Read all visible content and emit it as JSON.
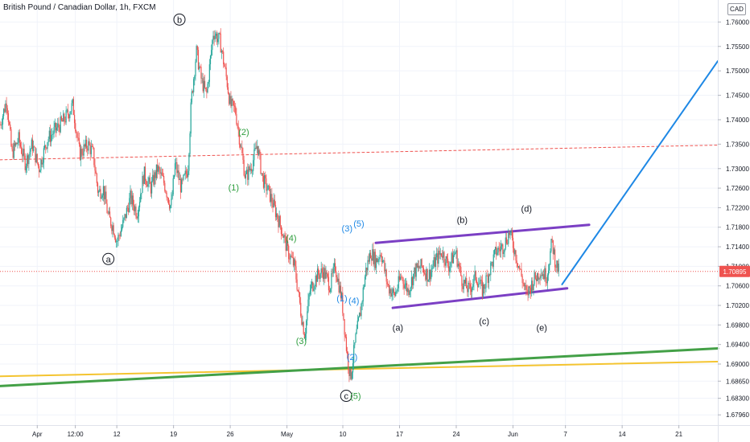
{
  "header": {
    "symbol_title": "British Pound / Canadian Dollar, 1h, FXCM",
    "currency_button": "CAD"
  },
  "colors": {
    "up": "#26a69a",
    "down": "#ef5350",
    "purple": "#7b3fc4",
    "blue": "#1e88e5",
    "green_line": "#43a047",
    "orange_line": "#f4c430",
    "green_label": "#2e9e3e",
    "blue_label": "#1e88e5",
    "black_label": "#131722",
    "price_tag": "#ef5350",
    "dashed": "#ef5350"
  },
  "chart_data": {
    "type": "line",
    "title": "British Pound / Canadian Dollar, 1h, FXCM",
    "ylim": [
      1.6775,
      1.7645
    ],
    "y_ticks": [
      "1.76000",
      "1.75500",
      "1.75000",
      "1.74500",
      "1.74000",
      "1.73500",
      "1.73000",
      "1.72600",
      "1.72200",
      "1.71800",
      "1.71400",
      "1.71000",
      "1.70600",
      "1.70200",
      "1.69800",
      "1.69400",
      "1.69000",
      "1.68650",
      "1.68300",
      "1.67960"
    ],
    "y_tick_values": [
      1.76,
      1.755,
      1.75,
      1.745,
      1.74,
      1.735,
      1.73,
      1.726,
      1.722,
      1.718,
      1.714,
      1.71,
      1.706,
      1.702,
      1.698,
      1.694,
      1.69,
      1.6865,
      1.683,
      1.6796
    ],
    "x_ticks": [
      {
        "label": "Apr",
        "t": 0
      },
      {
        "label": "12:00",
        "t": 4.5
      },
      {
        "label": "12",
        "t": 9.4
      },
      {
        "label": "19",
        "t": 16.1
      },
      {
        "label": "26",
        "t": 22.8
      },
      {
        "label": "May",
        "t": 29.5
      },
      {
        "label": "10",
        "t": 36.1
      },
      {
        "label": "17",
        "t": 42.8
      },
      {
        "label": "24",
        "t": 49.5
      },
      {
        "label": "Jun",
        "t": 56.2
      },
      {
        "label": "7",
        "t": 62.4
      },
      {
        "label": "14",
        "t": 69.1
      },
      {
        "label": "21",
        "t": 75.8
      }
    ],
    "xlim": [
      -4.4,
      80.4
    ],
    "current_price": "1.70895",
    "current_price_value": 1.70895,
    "price_path": [
      [
        -4.4,
        1.739
      ],
      [
        -3.6,
        1.744
      ],
      [
        -3.0,
        1.733
      ],
      [
        -2.2,
        1.736
      ],
      [
        -1.4,
        1.731
      ],
      [
        -0.6,
        1.735
      ],
      [
        0.2,
        1.73
      ],
      [
        1.2,
        1.736
      ],
      [
        2.2,
        1.738
      ],
      [
        3.2,
        1.74
      ],
      [
        4.2,
        1.743
      ],
      [
        5.0,
        1.733
      ],
      [
        6.0,
        1.735
      ],
      [
        6.6,
        1.733
      ],
      [
        7.2,
        1.725
      ],
      [
        7.8,
        1.726
      ],
      [
        8.4,
        1.72
      ],
      [
        9.0,
        1.718
      ],
      [
        9.4,
        1.715
      ],
      [
        10.2,
        1.719
      ],
      [
        11.0,
        1.724
      ],
      [
        11.8,
        1.721
      ],
      [
        12.6,
        1.729
      ],
      [
        13.4,
        1.726
      ],
      [
        14.2,
        1.73
      ],
      [
        15.0,
        1.727
      ],
      [
        15.8,
        1.722
      ],
      [
        16.3,
        1.731
      ],
      [
        17.0,
        1.726
      ],
      [
        17.8,
        1.73
      ],
      [
        18.2,
        1.744
      ],
      [
        18.8,
        1.754
      ],
      [
        19.4,
        1.748
      ],
      [
        20.0,
        1.745
      ],
      [
        20.8,
        1.758
      ],
      [
        21.6,
        1.756
      ],
      [
        22.4,
        1.748
      ],
      [
        22.8,
        1.743
      ],
      [
        23.4,
        1.742
      ],
      [
        24.0,
        1.735
      ],
      [
        24.6,
        1.728
      ],
      [
        25.4,
        1.731
      ],
      [
        26.0,
        1.735
      ],
      [
        26.6,
        1.728
      ],
      [
        27.4,
        1.725
      ],
      [
        28.0,
        1.722
      ],
      [
        28.8,
        1.718
      ],
      [
        29.6,
        1.713
      ],
      [
        30.4,
        1.71
      ],
      [
        31.2,
        1.7
      ],
      [
        31.6,
        1.696
      ],
      [
        32.2,
        1.705
      ],
      [
        33.0,
        1.708
      ],
      [
        33.8,
        1.709
      ],
      [
        34.6,
        1.706
      ],
      [
        35.2,
        1.71
      ],
      [
        36.0,
        1.703
      ],
      [
        36.6,
        1.692
      ],
      [
        37.0,
        1.687
      ],
      [
        37.6,
        1.695
      ],
      [
        38.2,
        1.701
      ],
      [
        38.8,
        1.709
      ],
      [
        39.4,
        1.713
      ],
      [
        40.0,
        1.711
      ],
      [
        40.6,
        1.713
      ],
      [
        41.4,
        1.706
      ],
      [
        42.2,
        1.704
      ],
      [
        43.0,
        1.708
      ],
      [
        43.8,
        1.705
      ],
      [
        44.6,
        1.709
      ],
      [
        45.4,
        1.71
      ],
      [
        46.2,
        1.708
      ],
      [
        47.0,
        1.711
      ],
      [
        47.8,
        1.713
      ],
      [
        48.6,
        1.71
      ],
      [
        49.4,
        1.713
      ],
      [
        50.2,
        1.707
      ],
      [
        51.0,
        1.705
      ],
      [
        51.8,
        1.708
      ],
      [
        52.6,
        1.705
      ],
      [
        53.4,
        1.709
      ],
      [
        54.2,
        1.713
      ],
      [
        55.0,
        1.714
      ],
      [
        55.8,
        1.717
      ],
      [
        56.6,
        1.712
      ],
      [
        57.2,
        1.708
      ],
      [
        57.8,
        1.704
      ],
      [
        58.6,
        1.707
      ],
      [
        59.4,
        1.709
      ],
      [
        60.2,
        1.708
      ],
      [
        60.8,
        1.715
      ],
      [
        61.2,
        1.711
      ],
      [
        61.6,
        1.709
      ]
    ],
    "horizontal_dashed": {
      "from": [
        -4.4,
        1.7318
      ],
      "to": [
        80.4,
        1.7348
      ]
    },
    "channel_upper": {
      "from": [
        40.0,
        1.7148
      ],
      "to": [
        65.2,
        1.7185
      ]
    },
    "channel_lower": {
      "from": [
        42.0,
        1.7015
      ],
      "to": [
        62.6,
        1.7055
      ]
    },
    "projection": {
      "from": [
        62.0,
        1.7063
      ],
      "to": [
        80.4,
        1.752
      ]
    },
    "green_trend": {
      "from": [
        -4.4,
        1.6855
      ],
      "to": [
        80.4,
        1.6932
      ]
    },
    "orange_trend": {
      "from": [
        -4.4,
        1.6875
      ],
      "to": [
        80.4,
        1.6905
      ]
    },
    "wave_labels": [
      {
        "text": "b",
        "circled": true,
        "color": "black",
        "t": 16.8,
        "y": 1.7605
      },
      {
        "text": "a",
        "circled": true,
        "color": "black",
        "t": 8.4,
        "y": 1.7115
      },
      {
        "text": "c",
        "circled": true,
        "color": "black",
        "t": 36.5,
        "y": 1.6835
      },
      {
        "text": "(5)",
        "circled": false,
        "color": "green",
        "t": 37.6,
        "y": 1.6835
      },
      {
        "text": "(2)",
        "circled": false,
        "color": "green",
        "t": 24.4,
        "y": 1.7375
      },
      {
        "text": "(1)",
        "circled": false,
        "color": "green",
        "t": 23.2,
        "y": 1.7262
      },
      {
        "text": "(4)",
        "circled": false,
        "color": "green",
        "t": 30.0,
        "y": 1.7158
      },
      {
        "text": "(3)",
        "circled": false,
        "color": "green",
        "t": 31.2,
        "y": 1.6948
      },
      {
        "text": "(3)",
        "circled": false,
        "color": "blue",
        "t": 36.6,
        "y": 1.7178
      },
      {
        "text": "(5)",
        "circled": false,
        "color": "blue",
        "t": 38.0,
        "y": 1.7188
      },
      {
        "text": "(1)",
        "circled": false,
        "color": "blue",
        "t": 36.0,
        "y": 1.7035
      },
      {
        "text": "(4)",
        "circled": false,
        "color": "blue",
        "t": 37.4,
        "y": 1.703
      },
      {
        "text": "(2)",
        "circled": false,
        "color": "blue",
        "t": 37.2,
        "y": 1.6915
      },
      {
        "text": "(a)",
        "circled": false,
        "color": "black",
        "t": 42.6,
        "y": 1.6975
      },
      {
        "text": "(b)",
        "circled": false,
        "color": "black",
        "t": 50.2,
        "y": 1.7195
      },
      {
        "text": "(c)",
        "circled": false,
        "color": "black",
        "t": 52.8,
        "y": 1.6988
      },
      {
        "text": "(d)",
        "circled": false,
        "color": "black",
        "t": 57.8,
        "y": 1.7218
      },
      {
        "text": "(e)",
        "circled": false,
        "color": "black",
        "t": 59.6,
        "y": 1.6975
      }
    ]
  }
}
